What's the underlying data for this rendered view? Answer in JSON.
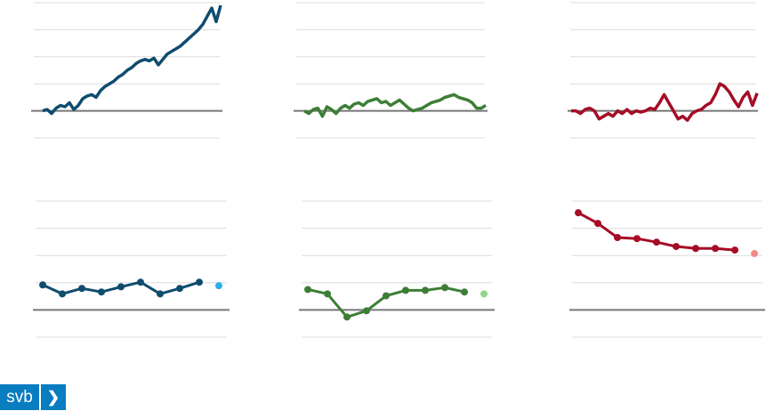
{
  "chart_data": [
    {
      "type": "line",
      "ylim": [
        -1,
        4
      ],
      "yticks": [
        -1,
        0,
        1,
        2,
        3,
        4
      ],
      "grid": true,
      "baseline": 0,
      "series": [
        {
          "color": "#0f4c6e",
          "values": [
            0,
            0.05,
            -0.1,
            0.1,
            0.2,
            0.15,
            0.3,
            0.05,
            0.2,
            0.45,
            0.55,
            0.6,
            0.5,
            0.75,
            0.9,
            1.0,
            1.1,
            1.25,
            1.35,
            1.5,
            1.6,
            1.75,
            1.85,
            1.9,
            1.85,
            1.95,
            1.7,
            1.9,
            2.1,
            2.2,
            2.3,
            2.4,
            2.55,
            2.7,
            2.85,
            3.0,
            3.2,
            3.5,
            3.8,
            3.3,
            3.9
          ]
        }
      ]
    },
    {
      "type": "line",
      "ylim": [
        -1,
        4
      ],
      "yticks": [
        -1,
        0,
        1,
        2,
        3,
        4
      ],
      "grid": true,
      "baseline": 0,
      "series": [
        {
          "color": "#3d7e36",
          "values": [
            0,
            -0.1,
            0.05,
            0.1,
            -0.2,
            0.15,
            0.05,
            -0.1,
            0.1,
            0.2,
            0.1,
            0.25,
            0.3,
            0.2,
            0.35,
            0.4,
            0.45,
            0.3,
            0.35,
            0.2,
            0.3,
            0.4,
            0.25,
            0.1,
            0.0,
            0.05,
            0.1,
            0.2,
            0.3,
            0.35,
            0.4,
            0.5,
            0.55,
            0.6,
            0.5,
            0.45,
            0.4,
            0.3,
            0.1,
            0.1,
            0.2
          ]
        }
      ]
    },
    {
      "type": "line",
      "ylim": [
        -1,
        4
      ],
      "yticks": [
        -1,
        0,
        1,
        2,
        3,
        4
      ],
      "grid": true,
      "baseline": 0,
      "series": [
        {
          "color": "#a50d26",
          "values": [
            0,
            0,
            -0.1,
            0.05,
            0.1,
            0.0,
            -0.3,
            -0.2,
            -0.1,
            -0.2,
            0.0,
            -0.1,
            0.05,
            -0.1,
            0.0,
            -0.05,
            0.0,
            0.1,
            0.05,
            0.3,
            0.6,
            0.3,
            0.0,
            -0.3,
            -0.2,
            -0.35,
            -0.1,
            0.0,
            0.05,
            0.2,
            0.3,
            0.6,
            1.0,
            0.9,
            0.7,
            0.4,
            0.15,
            0.5,
            0.7,
            0.2,
            0.65
          ]
        }
      ]
    },
    {
      "type": "line",
      "markers": true,
      "ylim": [
        -1,
        4
      ],
      "yticks": [
        -1,
        0,
        1,
        2,
        3,
        4
      ],
      "grid": true,
      "baseline": 0,
      "series": [
        {
          "color": "#0f4c6e",
          "values": [
            0.92,
            0.59,
            0.79,
            0.66,
            0.85,
            1.02,
            0.59,
            0.79,
            1.02,
            null
          ]
        },
        {
          "color": "#2ab0e8",
          "values": [
            null,
            null,
            null,
            null,
            null,
            null,
            null,
            null,
            null,
            0.89
          ]
        }
      ]
    },
    {
      "type": "line",
      "markers": true,
      "ylim": [
        -1,
        4
      ],
      "yticks": [
        -1,
        0,
        1,
        2,
        3,
        4
      ],
      "grid": true,
      "baseline": 0,
      "series": [
        {
          "color": "#3d7e36",
          "values": [
            0.75,
            0.59,
            -0.26,
            -0.03,
            0.52,
            0.72,
            0.72,
            0.82,
            0.66,
            null
          ]
        },
        {
          "color": "#8fd68a",
          "values": [
            null,
            null,
            null,
            null,
            null,
            null,
            null,
            null,
            null,
            0.59
          ]
        }
      ]
    },
    {
      "type": "line",
      "markers": true,
      "ylim": [
        -1,
        4
      ],
      "yticks": [
        -1,
        0,
        1,
        2,
        3,
        4
      ],
      "grid": true,
      "baseline": 0,
      "series": [
        {
          "color": "#a50d26",
          "values": [
            3.57,
            3.18,
            2.66,
            2.62,
            2.49,
            2.33,
            2.26,
            2.26,
            2.2,
            null
          ]
        },
        {
          "color": "#f28a8a",
          "values": [
            null,
            null,
            null,
            null,
            null,
            null,
            null,
            null,
            null,
            2.07
          ]
        }
      ]
    }
  ],
  "logo": {
    "text": "svb",
    "arrow": "❯"
  }
}
